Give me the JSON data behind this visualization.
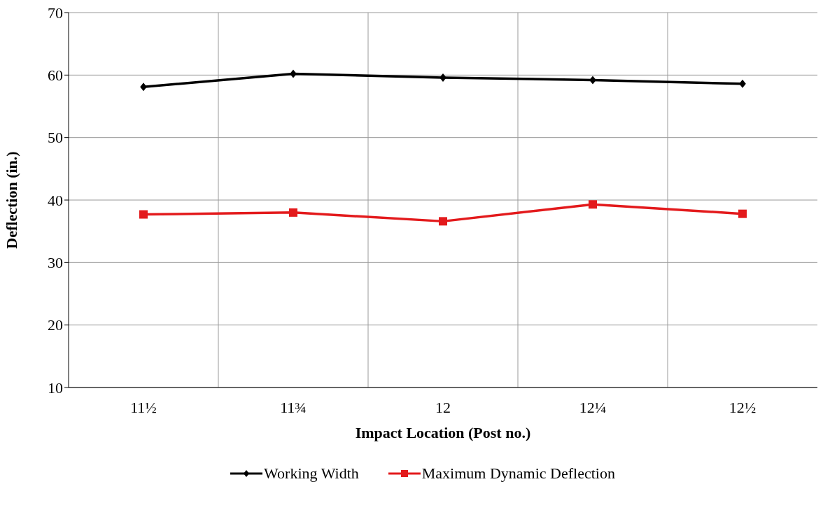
{
  "chart_data": {
    "type": "line",
    "xlabel": "Impact Location (Post no.)",
    "ylabel": "Deflection (in.)",
    "categories": [
      "11½",
      "11¾",
      "12",
      "12¼",
      "12½"
    ],
    "series": [
      {
        "name": "Working Width",
        "color": "#000000",
        "marker": "diamond",
        "values": [
          58.1,
          60.2,
          59.6,
          59.2,
          58.6
        ]
      },
      {
        "name": "Maximum Dynamic Deflection",
        "color": "#e31a1c",
        "marker": "square",
        "values": [
          37.7,
          38.0,
          36.6,
          39.3,
          37.8
        ]
      }
    ],
    "ylim": [
      10,
      70
    ],
    "yticks": [
      10,
      20,
      30,
      40,
      50,
      60,
      70
    ],
    "grid": true,
    "legend": "bottom",
    "line_style": "solid"
  }
}
